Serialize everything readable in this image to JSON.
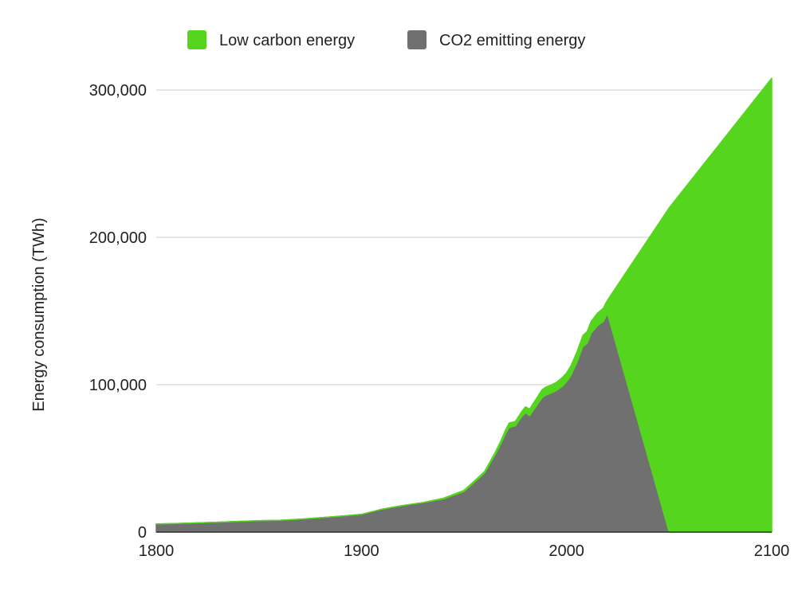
{
  "chart_data": {
    "type": "area",
    "stacked": true,
    "title": "",
    "xlabel": "",
    "ylabel": "Energy consumption (TWh)",
    "xlim": [
      1800,
      2100
    ],
    "ylim": [
      0,
      300000
    ],
    "x_ticks": [
      "1800",
      "1900",
      "2000",
      "2100"
    ],
    "y_ticks": [
      "0",
      "100,000",
      "200,000",
      "300,000"
    ],
    "grid": true,
    "legend_position": "top",
    "x": [
      1800,
      1810,
      1820,
      1830,
      1840,
      1850,
      1860,
      1870,
      1880,
      1890,
      1900,
      1910,
      1920,
      1930,
      1940,
      1950,
      1960,
      1965,
      1968,
      1970,
      1972,
      1975,
      1978,
      1980,
      1982,
      1985,
      1988,
      1990,
      1992,
      1995,
      1998,
      2000,
      2002,
      2005,
      2008,
      2010,
      2012,
      2015,
      2018,
      2019,
      2020,
      2050,
      2100
    ],
    "series": [
      {
        "name": "CO2 emitting energy",
        "color": "#707070",
        "values": [
          5500,
          5800,
          6200,
          6700,
          7200,
          7700,
          8000,
          8700,
          9700,
          10800,
          12000,
          15500,
          18000,
          20000,
          22500,
          27500,
          40000,
          52000,
          60000,
          66000,
          71000,
          72000,
          78000,
          81000,
          79000,
          85000,
          91000,
          93000,
          94000,
          96000,
          99000,
          102000,
          106000,
          115000,
          126000,
          128000,
          135000,
          140000,
          143000,
          146000,
          148000,
          0,
          0
        ]
      },
      {
        "name": "Low carbon energy",
        "color": "#55d51e",
        "values": [
          0,
          0,
          0,
          0,
          0,
          0,
          0,
          0,
          0,
          0,
          0,
          0,
          0,
          0,
          500,
          800,
          1000,
          1500,
          2000,
          2500,
          3000,
          3000,
          3500,
          4000,
          4500,
          5000,
          5500,
          5500,
          5500,
          5500,
          6000,
          6000,
          6500,
          7000,
          7500,
          8000,
          8000,
          8500,
          9000,
          9000,
          9500,
          220000,
          308000
        ]
      }
    ]
  }
}
